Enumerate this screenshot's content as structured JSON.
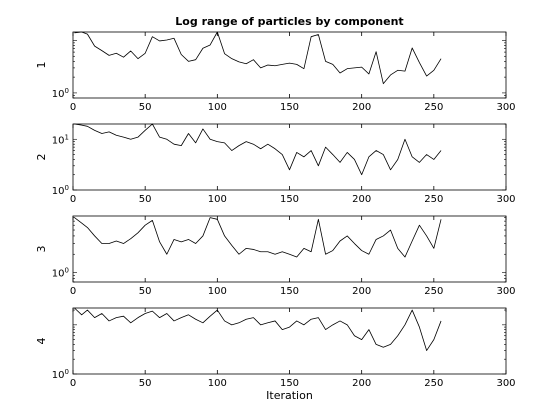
{
  "chart_data": {
    "type": "line",
    "title": "Log range of particles by component",
    "xlabel": "Iteration",
    "xlim": [
      0,
      300
    ],
    "xticks": [
      0,
      50,
      100,
      150,
      200,
      250,
      300
    ],
    "yscale": "log",
    "grid": false,
    "legend": "none",
    "line_color": "#000000",
    "subplots": [
      {
        "ylabel": "1",
        "ylim": [
          0.8,
          14.5
        ],
        "yticks": [
          {
            "value": 1,
            "base": "10",
            "exp": "0"
          }
        ],
        "x": [
          1,
          6,
          10,
          15,
          20,
          25,
          30,
          35,
          40,
          45,
          50,
          55,
          60,
          65,
          70,
          75,
          80,
          85,
          90,
          95,
          100,
          105,
          110,
          115,
          120,
          125,
          130,
          135,
          140,
          145,
          150,
          155,
          160,
          165,
          170,
          175,
          180,
          185,
          190,
          195,
          200,
          205,
          210,
          215,
          220,
          225,
          230,
          235,
          240,
          245,
          250,
          255
        ],
        "values": [
          14.0,
          14.5,
          13.2,
          7.8,
          6.4,
          5.2,
          5.7,
          4.8,
          6.3,
          4.5,
          5.7,
          11.8,
          9.8,
          10.2,
          11.0,
          5.4,
          4.0,
          4.3,
          7.1,
          8.2,
          15.0,
          5.6,
          4.5,
          3.9,
          3.6,
          4.3,
          3.0,
          3.4,
          3.3,
          3.5,
          3.7,
          3.5,
          2.9,
          11.8,
          13.0,
          4.0,
          3.5,
          2.4,
          2.9,
          3.0,
          3.1,
          2.3,
          6.1,
          1.5,
          2.2,
          2.7,
          2.6,
          7.2,
          3.8,
          2.1,
          2.7,
          4.5
        ]
      },
      {
        "ylabel": "2",
        "ylim": [
          1,
          20
        ],
        "yticks": [
          {
            "value": 1,
            "base": "10",
            "exp": "0"
          },
          {
            "value": 10,
            "base": "10",
            "exp": "1"
          }
        ],
        "x": [
          1,
          6,
          10,
          15,
          20,
          25,
          30,
          35,
          40,
          45,
          50,
          55,
          60,
          65,
          70,
          75,
          80,
          85,
          90,
          95,
          100,
          105,
          110,
          115,
          120,
          125,
          130,
          135,
          140,
          145,
          150,
          155,
          160,
          165,
          170,
          175,
          180,
          185,
          190,
          195,
          200,
          205,
          210,
          215,
          220,
          225,
          230,
          235,
          240,
          245,
          250,
          255
        ],
        "values": [
          20,
          19,
          18,
          15,
          13,
          14,
          12,
          11,
          10,
          11,
          15,
          20,
          11,
          10,
          8,
          7.5,
          13,
          8.5,
          16,
          10,
          9,
          8.5,
          6,
          7.5,
          9,
          8,
          6.5,
          8,
          6.5,
          5,
          2.5,
          5.5,
          4.5,
          6,
          3,
          7,
          5,
          3.5,
          5.5,
          4,
          2,
          4.5,
          6,
          5,
          2.5,
          4,
          10,
          4.5,
          3.5,
          5,
          4,
          6
        ]
      },
      {
        "ylabel": "3",
        "ylim": [
          0.7,
          8.5
        ],
        "yticks": [
          {
            "value": 1,
            "base": "10",
            "exp": "0"
          }
        ],
        "x": [
          1,
          6,
          10,
          15,
          20,
          25,
          30,
          35,
          40,
          45,
          50,
          55,
          60,
          65,
          70,
          75,
          80,
          85,
          90,
          95,
          100,
          105,
          110,
          115,
          120,
          125,
          130,
          135,
          140,
          145,
          150,
          155,
          160,
          165,
          170,
          175,
          180,
          185,
          190,
          195,
          200,
          205,
          210,
          215,
          220,
          225,
          230,
          235,
          240,
          245,
          250,
          255
        ],
        "values": [
          8.0,
          6.5,
          5.5,
          4.0,
          3.0,
          3.0,
          3.3,
          3.0,
          3.6,
          4.5,
          6.0,
          7.2,
          3.2,
          2.0,
          3.5,
          3.2,
          3.5,
          3.0,
          4.0,
          8.0,
          7.5,
          4.0,
          2.8,
          2.0,
          2.5,
          2.4,
          2.2,
          2.2,
          2.0,
          2.2,
          2.0,
          1.8,
          2.5,
          2.2,
          7.5,
          2.0,
          2.3,
          3.3,
          4.0,
          3.0,
          2.3,
          2.0,
          3.5,
          4.0,
          5.0,
          2.5,
          1.8,
          3.3,
          6.0,
          4.0,
          2.5,
          7.5
        ]
      },
      {
        "ylabel": "4",
        "ylim": [
          1,
          22
        ],
        "yticks": [
          {
            "value": 1,
            "base": "10",
            "exp": "0"
          }
        ],
        "x": [
          1,
          6,
          10,
          15,
          20,
          25,
          30,
          35,
          40,
          45,
          50,
          55,
          60,
          65,
          70,
          75,
          80,
          85,
          90,
          95,
          100,
          105,
          110,
          115,
          120,
          125,
          130,
          135,
          140,
          145,
          150,
          155,
          160,
          165,
          170,
          175,
          180,
          185,
          190,
          195,
          200,
          205,
          210,
          215,
          220,
          225,
          230,
          235,
          240,
          245,
          250,
          255
        ],
        "values": [
          22,
          16,
          20,
          14,
          17,
          12,
          14,
          15,
          11,
          14,
          17,
          19,
          14,
          17,
          12,
          14,
          16,
          13,
          11,
          15,
          20,
          12,
          10,
          11,
          13,
          14,
          10,
          11,
          12,
          8,
          9,
          12,
          10,
          13,
          14,
          8,
          10,
          12,
          10,
          6,
          5,
          8,
          4,
          3.5,
          4,
          6,
          10,
          20,
          9,
          3,
          5,
          12
        ]
      }
    ]
  }
}
